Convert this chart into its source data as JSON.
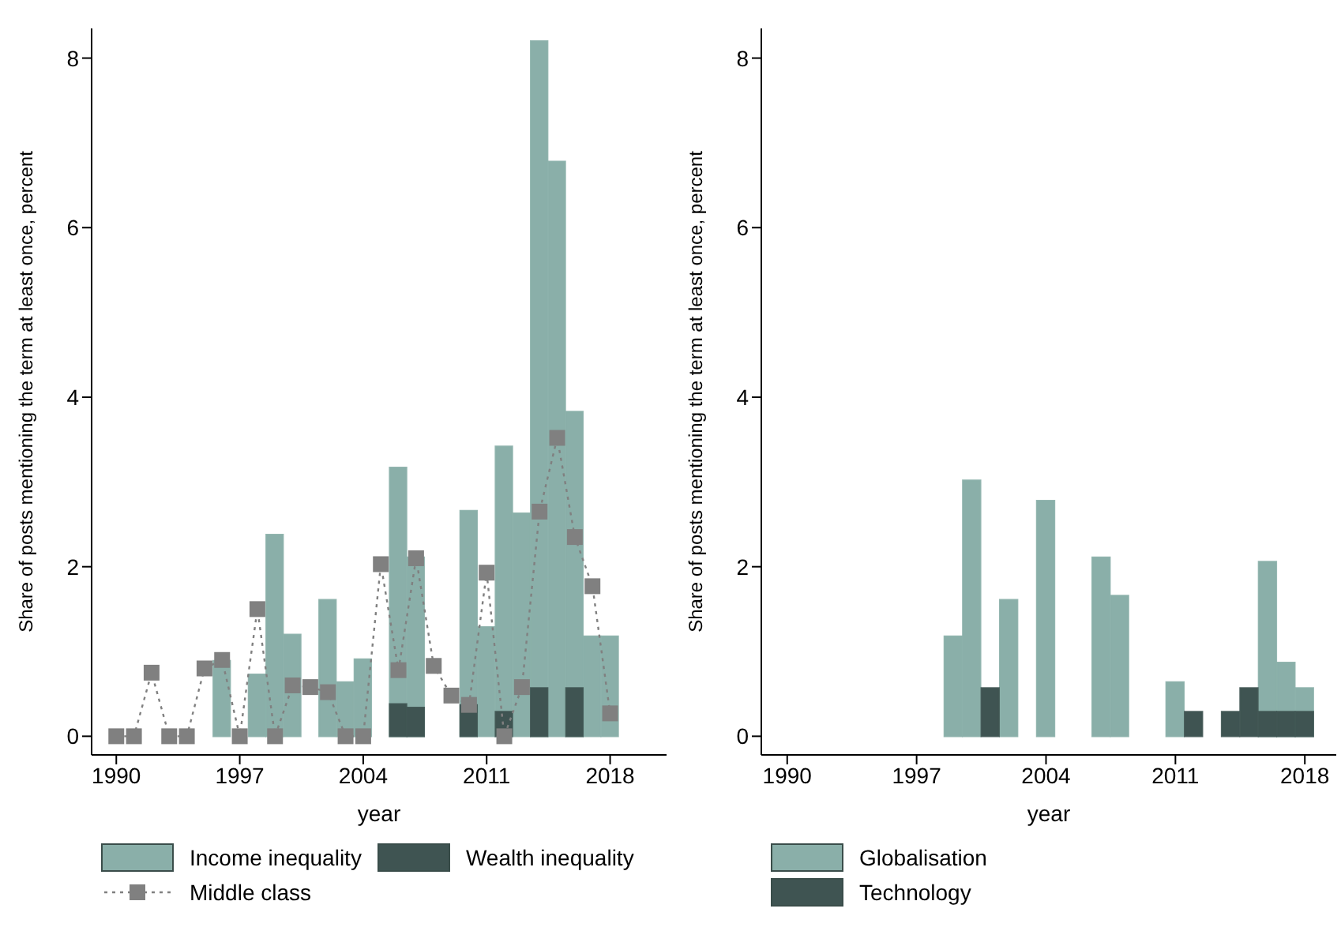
{
  "chart_data": [
    {
      "type": "bar",
      "xlabel": "year",
      "ylabel": "Share of posts mentioning the term at least once, percent",
      "x": [
        1990,
        1991,
        1992,
        1993,
        1994,
        1995,
        1996,
        1997,
        1998,
        1999,
        2000,
        2001,
        2002,
        2003,
        2004,
        2005,
        2006,
        2007,
        2008,
        2009,
        2010,
        2011,
        2012,
        2013,
        2014,
        2015,
        2016,
        2017,
        2018
      ],
      "xlim": [
        1988.6,
        2021.2
      ],
      "xticks": [
        1990,
        1997,
        2004,
        2011,
        2018
      ],
      "ylim": [
        -0.22,
        8.35
      ],
      "yticks": [
        0,
        2,
        4,
        6,
        8
      ],
      "legend": "bottom",
      "series": [
        {
          "name": "Income inequality",
          "color": "#8aafa9",
          "values": [
            null,
            null,
            null,
            null,
            null,
            null,
            0.89,
            null,
            0.73,
            2.38,
            1.2,
            null,
            1.61,
            0.64,
            0.91,
            null,
            3.17,
            2.11,
            null,
            null,
            2.66,
            1.29,
            3.42,
            2.63,
            8.2,
            6.78,
            3.83,
            1.18,
            1.18
          ]
        },
        {
          "name": "Wealth inequality",
          "color": "#3f5452",
          "values": [
            null,
            null,
            null,
            null,
            null,
            null,
            null,
            null,
            null,
            null,
            null,
            null,
            null,
            null,
            null,
            null,
            0.38,
            0.34,
            null,
            null,
            0.37,
            null,
            0.29,
            null,
            0.57,
            null,
            0.57,
            null,
            null
          ]
        },
        {
          "name": "Middle class",
          "type": "line",
          "color": "#808080",
          "marker": "square",
          "line_style": "dotted",
          "values": [
            0,
            0,
            0.75,
            0,
            0,
            0.8,
            0.9,
            0,
            1.5,
            0,
            0.6,
            0.58,
            0.52,
            0,
            0,
            2.03,
            0.78,
            2.1,
            0.83,
            0.48,
            0.37,
            1.93,
            0,
            0.58,
            2.65,
            3.52,
            2.35,
            1.77,
            0.27
          ]
        }
      ]
    },
    {
      "type": "bar",
      "xlabel": "year",
      "ylabel": "Share of posts mentioning the term at least once, percent",
      "x": [
        1999,
        2000,
        2001,
        2002,
        2004,
        2007,
        2008,
        2011,
        2012,
        2014,
        2015,
        2016,
        2017,
        2018
      ],
      "xlim": [
        1988.6,
        2019.7
      ],
      "xticks": [
        1990,
        1997,
        2004,
        2011,
        2018
      ],
      "ylim": [
        -0.22,
        8.35
      ],
      "yticks": [
        0,
        2,
        4,
        6,
        8
      ],
      "legend": "bottom",
      "series": [
        {
          "name": "Globalisation",
          "color": "#8aafa9",
          "values": [
            1.18,
            3.02,
            null,
            1.61,
            2.78,
            2.11,
            1.66,
            0.64,
            null,
            null,
            null,
            2.06,
            0.87,
            0.57
          ]
        },
        {
          "name": "Technology",
          "color": "#3f5452",
          "values": [
            null,
            null,
            0.57,
            null,
            null,
            null,
            null,
            null,
            0.29,
            0.29,
            0.57,
            0.29,
            0.29,
            0.29
          ]
        }
      ]
    }
  ]
}
